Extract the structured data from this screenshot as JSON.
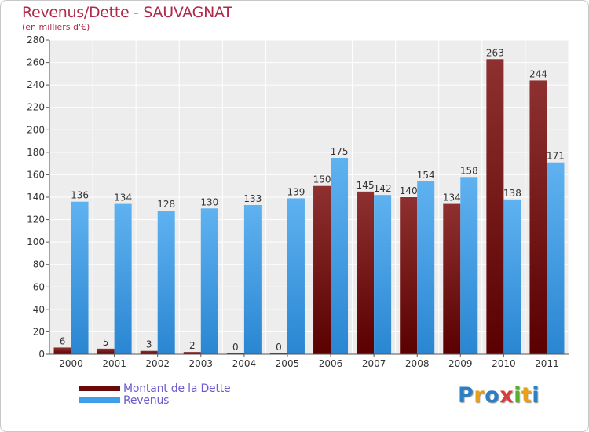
{
  "header": {
    "title": "Revenus/Dette - SAUVAGNAT",
    "subtitle": "(en milliers d'€)"
  },
  "chart_data": {
    "type": "bar",
    "title": "Revenus/Dette - SAUVAGNAT",
    "ylabel": "(en milliers d'€)",
    "xlabel": "",
    "ylim": [
      0,
      280
    ],
    "yticks": [
      0,
      20,
      40,
      60,
      80,
      100,
      120,
      140,
      160,
      180,
      200,
      220,
      240,
      260,
      280
    ],
    "grid": true,
    "categories": [
      "2000",
      "2001",
      "2002",
      "2003",
      "2004",
      "2005",
      "2006",
      "2007",
      "2008",
      "2009",
      "2010",
      "2011"
    ],
    "series": [
      {
        "name": "Montant de la Dette",
        "color": "#7a1010",
        "values": [
          6,
          5,
          3,
          2,
          0,
          0,
          150,
          145,
          140,
          134,
          263,
          244
        ]
      },
      {
        "name": "Revenus",
        "color": "#3f9ee8",
        "values": [
          136,
          134,
          128,
          130,
          133,
          139,
          175,
          142,
          154,
          158,
          138,
          171
        ]
      }
    ]
  },
  "legend": {
    "items": [
      {
        "label": "Montant de la Dette",
        "color": "#6b0a0a"
      },
      {
        "label": "Revenus",
        "color": "#3f9ee8"
      }
    ]
  },
  "brand": {
    "letters": [
      {
        "ch": "P",
        "color": "#2b7fc4"
      },
      {
        "ch": "r",
        "color": "#e8a018"
      },
      {
        "ch": "o",
        "color": "#2b7fc4"
      },
      {
        "ch": "x",
        "color": "#d83c3c"
      },
      {
        "ch": "i",
        "color": "#58b02c"
      },
      {
        "ch": "t",
        "color": "#e8a018"
      },
      {
        "ch": "i",
        "color": "#2b7fc4"
      }
    ]
  }
}
